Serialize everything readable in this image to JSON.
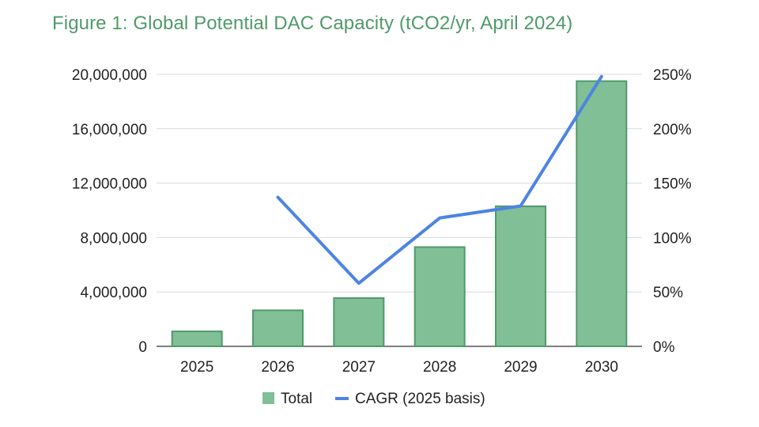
{
  "chart_data": {
    "type": "bar",
    "title": "Figure 1: Global Potential DAC Capacity (tCO2/yr, April 2024)",
    "categories": [
      "2025",
      "2026",
      "2027",
      "2028",
      "2029",
      "2030"
    ],
    "series": [
      {
        "name": "Total",
        "type": "bar",
        "axis": "left",
        "color": "#81bf97",
        "values": [
          1100000,
          2650000,
          3550000,
          7300000,
          10300000,
          19500000
        ]
      },
      {
        "name": "CAGR (2025 basis)",
        "type": "line",
        "axis": "right",
        "color": "#4d84e3",
        "values": [
          null,
          1.37,
          0.58,
          1.18,
          1.29,
          2.48
        ]
      }
    ],
    "y_left": {
      "min": 0,
      "max": 20000000,
      "ticks": [
        0,
        4000000,
        8000000,
        12000000,
        16000000,
        20000000
      ],
      "tick_labels": [
        "0",
        "4,000,000",
        "8,000,000",
        "12,000,000",
        "16,000,000",
        "20,000,000"
      ]
    },
    "y_right": {
      "min": 0,
      "max": 2.5,
      "ticks": [
        0,
        0.5,
        1.0,
        1.5,
        2.0,
        2.5
      ],
      "tick_labels": [
        "0%",
        "50%",
        "100%",
        "150%",
        "200%",
        "250%"
      ]
    },
    "xlabel": "",
    "ylabel": "",
    "grid": true,
    "legend_position": "bottom"
  }
}
